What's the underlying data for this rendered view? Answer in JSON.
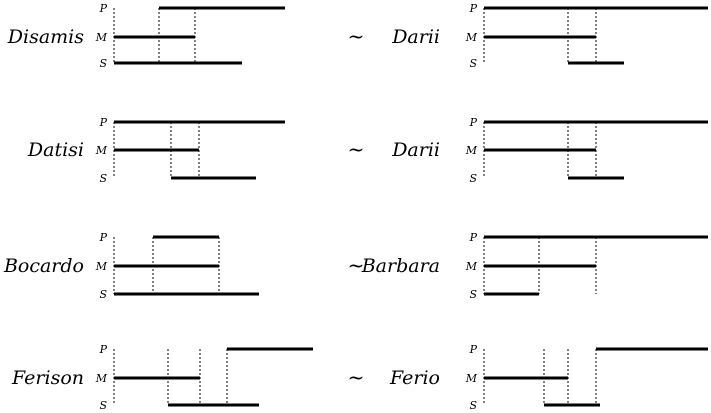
{
  "equivalence_symbol": "~",
  "term_labels": {
    "P": "P",
    "M": "M",
    "S": "S"
  },
  "rows": [
    {
      "left": {
        "name": "Disamis",
        "P": [
          159,
          285
        ],
        "M": [
          114,
          195
        ],
        "S": [
          114,
          242
        ],
        "guides": [
          159,
          195
        ]
      },
      "right": {
        "name": "Darii",
        "P": [
          484,
          708
        ],
        "M": [
          484,
          596
        ],
        "S": [
          568,
          624
        ],
        "guides": [
          568,
          596
        ]
      }
    },
    {
      "left": {
        "name": "Datisi",
        "P": [
          114,
          285
        ],
        "M": [
          114,
          199
        ],
        "S": [
          171,
          256
        ],
        "guides": [
          171,
          199
        ]
      },
      "right": {
        "name": "Darii",
        "P": [
          484,
          708
        ],
        "M": [
          484,
          596
        ],
        "S": [
          568,
          624
        ],
        "guides": [
          568,
          596
        ]
      }
    },
    {
      "left": {
        "name": "Bocardo",
        "P": [
          153,
          219
        ],
        "M": [
          114,
          219
        ],
        "S": [
          114,
          259
        ],
        "guides": [
          153,
          219
        ]
      },
      "right": {
        "name": "Barbara",
        "P": [
          484,
          708
        ],
        "M": [
          484,
          596
        ],
        "S": [
          484,
          539
        ],
        "guides": [
          539,
          596
        ]
      }
    },
    {
      "left": {
        "name": "Ferison",
        "P": [
          227,
          313
        ],
        "M": [
          114,
          200
        ],
        "S": [
          168,
          259
        ],
        "guides": [
          168,
          200,
          227
        ]
      },
      "right": {
        "name": "Ferio",
        "P": [
          596,
          708
        ],
        "M": [
          484,
          568
        ],
        "S": [
          544,
          600
        ],
        "guides": [
          544,
          568,
          596
        ]
      }
    }
  ]
}
